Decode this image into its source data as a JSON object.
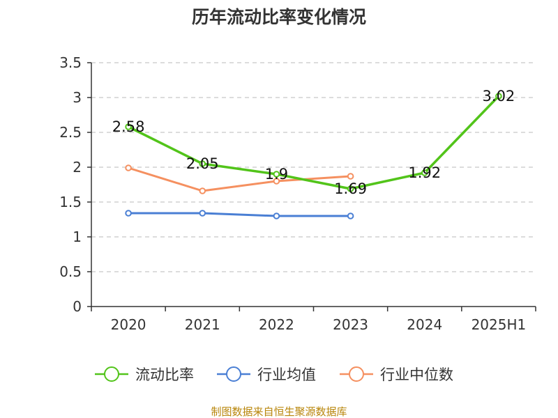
{
  "chart_data": {
    "type": "line",
    "title": "历年流动比率变化情况",
    "categories": [
      "2020",
      "2021",
      "2022",
      "2023",
      "2024",
      "2025H1"
    ],
    "ylim": [
      0,
      3.5
    ],
    "yticks": [
      "0",
      "0.5",
      "1",
      "1.5",
      "2",
      "2.5",
      "3",
      "3.5"
    ],
    "grid": true,
    "legend_position": "bottom",
    "series": [
      {
        "name": "流动比率",
        "color": "#52c41a",
        "values": [
          2.58,
          2.05,
          1.9,
          1.69,
          1.92,
          3.02
        ],
        "labels": [
          "2.58",
          "2.05",
          "1.9",
          "1.69",
          "1.92",
          "3.02"
        ]
      },
      {
        "name": "行业均值",
        "color": "#4a7fd4",
        "values": [
          1.34,
          1.34,
          1.3,
          1.3,
          null,
          null
        ]
      },
      {
        "name": "行业中位数",
        "color": "#f59060",
        "values": [
          1.99,
          1.66,
          1.8,
          1.87,
          null,
          null
        ]
      }
    ],
    "source": "制图数据来自恒生聚源数据库"
  }
}
